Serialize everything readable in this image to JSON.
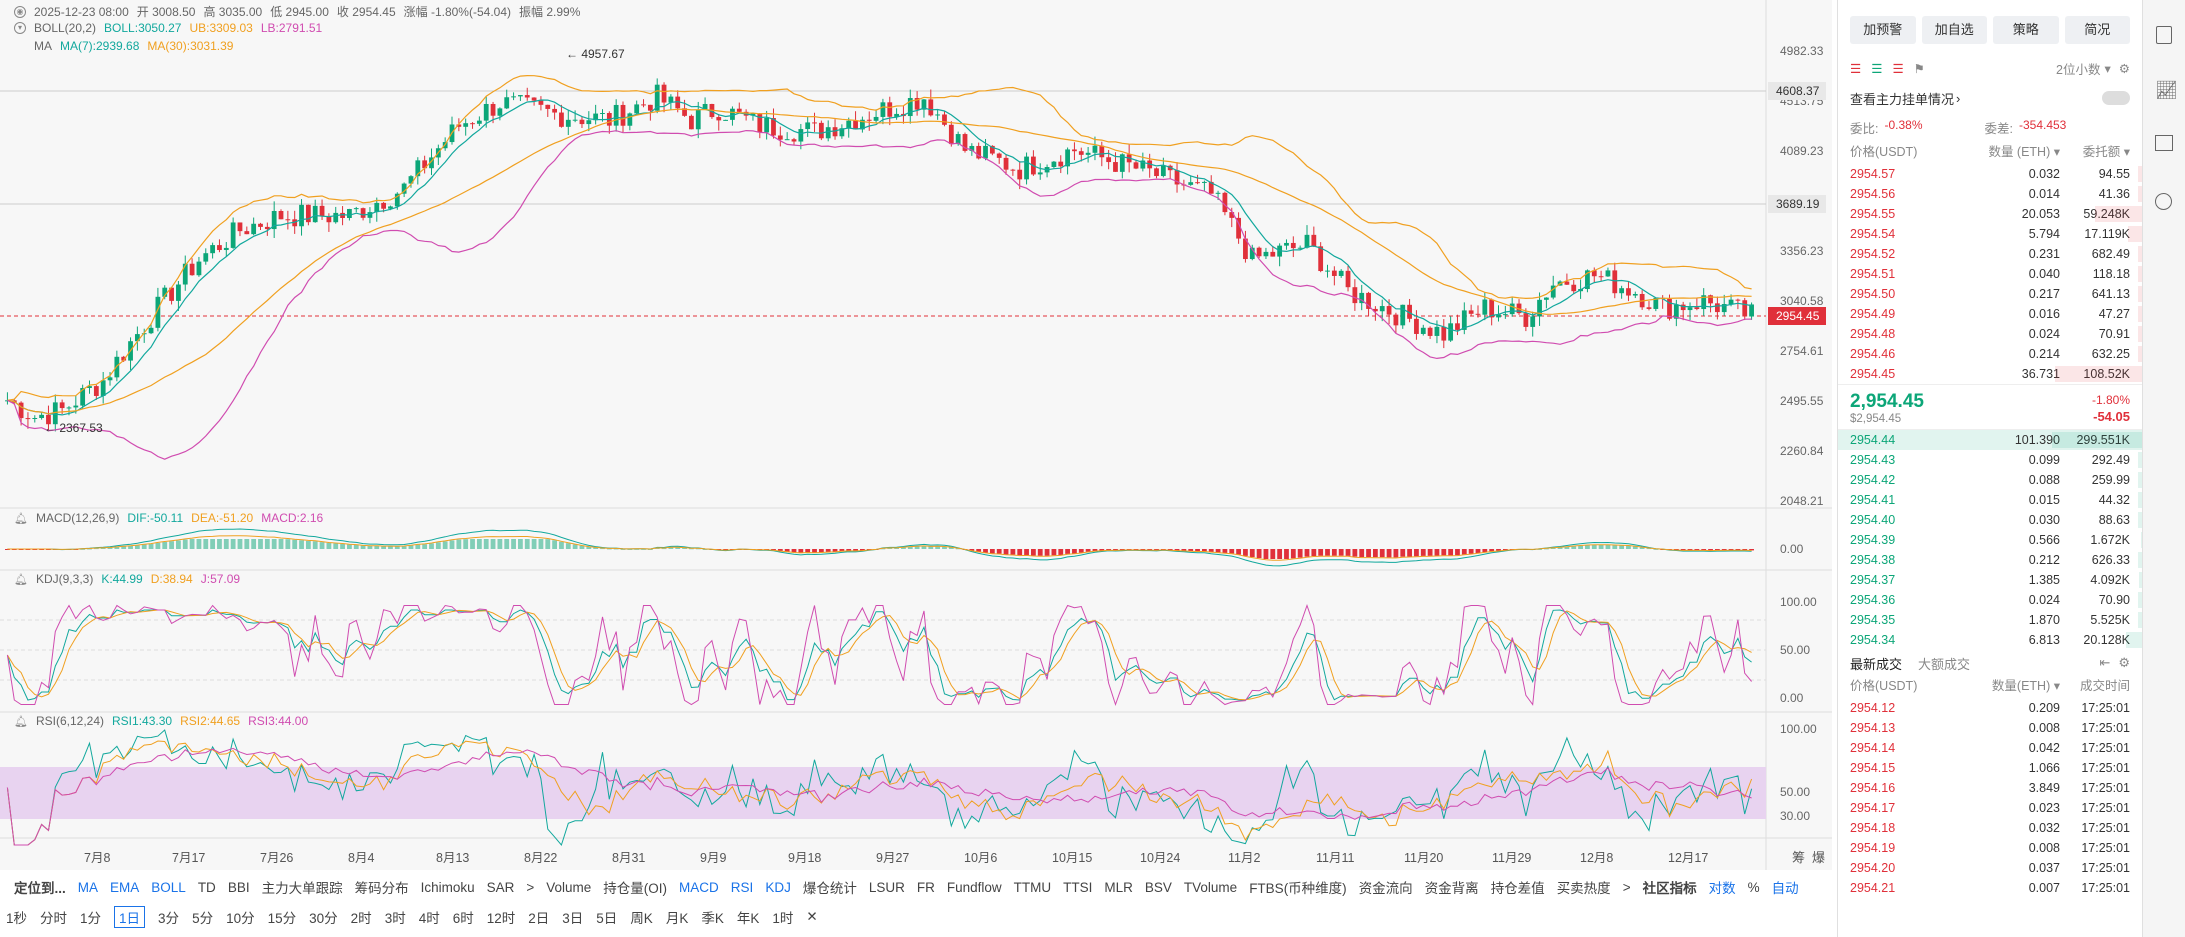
{
  "header": {
    "line1": [
      {
        "t": "2025-12-23 08:00",
        "c": "#666"
      },
      {
        "t": "开 3008.50",
        "c": "#666"
      },
      {
        "t": "高 3035.00",
        "c": "#666"
      },
      {
        "t": "低 2945.00",
        "c": "#666"
      },
      {
        "t": "收 2954.45",
        "c": "#666"
      },
      {
        "t": "涨幅 -1.80%(-54.04)",
        "c": "#666"
      },
      {
        "t": "振幅 2.99%",
        "c": "#666"
      }
    ],
    "boll": [
      {
        "t": "BOLL(20,2)",
        "c": "#666"
      },
      {
        "t": "BOLL:3050.27",
        "c": "#12a89d"
      },
      {
        "t": "UB:3309.03",
        "c": "#f0a020"
      },
      {
        "t": "LB:2791.51",
        "c": "#d04cb0"
      }
    ],
    "ma": [
      {
        "t": "MA",
        "c": "#666"
      },
      {
        "t": "MA(7):2939.68",
        "c": "#12a89d"
      },
      {
        "t": "MA(30):3031.39",
        "c": "#f0a020"
      }
    ]
  },
  "price_axis": [
    "4982.33",
    "4513.75",
    "4089.23",
    "3356.23",
    "3040.58",
    "2754.61",
    "2495.55",
    "2260.84",
    "2048.21"
  ],
  "price_tags": [
    {
      "t": "4608.37",
      "bg": "#e8e8e8",
      "fg": "#333",
      "y": 91
    },
    {
      "t": "3689.19",
      "bg": "#e8e8e8",
      "fg": "#333",
      "y": 204
    },
    {
      "t": "2954.45",
      "bg": "#e0303a",
      "fg": "#fff",
      "y": 316
    }
  ],
  "annotations": {
    "high": "4957.67",
    "low": "2367.53"
  },
  "macd": {
    "title": "MACD(12,26,9)",
    "dif": "DIF:-50.11",
    "dea": "DEA:-51.20",
    "macd": "MACD:2.16",
    "axis": [
      "0.00"
    ]
  },
  "kdj": {
    "title": "KDJ(9,3,3)",
    "k": "K:44.99",
    "d": "D:38.94",
    "j": "J:57.09",
    "axis": [
      "100.00",
      "50.00",
      "0.00"
    ]
  },
  "rsi": {
    "title": "RSI(6,12,24)",
    "r1": "RSI1:43.30",
    "r2": "RSI2:44.65",
    "r3": "RSI3:44.00",
    "axis": [
      "100.00",
      "50.00",
      "30.00"
    ]
  },
  "date_axis": [
    "7月8",
    "7月17",
    "7月26",
    "8月4",
    "8月13",
    "8月22",
    "8月31",
    "9月9",
    "9月18",
    "9月27",
    "10月6",
    "10月15",
    "10月24",
    "11月2",
    "11月11",
    "11月20",
    "11月29",
    "12月8",
    "12月17"
  ],
  "corner": [
    "筹",
    "爆"
  ],
  "bottom_indicators": [
    "定位到...",
    "MA",
    "EMA",
    "BOLL",
    "TD",
    "BBI",
    "主力大单跟踪",
    "筹码分布",
    "Ichimoku",
    "SAR",
    ">",
    "Volume",
    "持仓量(OI)",
    "MACD",
    "RSI",
    "KDJ",
    "爆仓统计",
    "LSUR",
    "FR",
    "Fundflow",
    "TTMU",
    "TTSI",
    "MLR",
    "BSV",
    "TVolume",
    "FTBS(币种维度)",
    "资金流向",
    "资金背离",
    "持仓差值",
    "买卖热度",
    ">",
    "社区指标",
    "对数",
    "%",
    "自动"
  ],
  "timeframes": [
    "1秒",
    "分时",
    "1分",
    "1日",
    "3分",
    "5分",
    "10分",
    "15分",
    "30分",
    "2时",
    "3时",
    "4时",
    "6时",
    "12时",
    "2日",
    "3日",
    "5日",
    "周K",
    "月K",
    "季K",
    "年K",
    "1时",
    "✕"
  ],
  "active_timeframe": "1日",
  "right_panel": {
    "buttons": [
      "加预警",
      "加自选",
      "策略",
      "简况"
    ],
    "precision": "2位小数",
    "orderbook_title": "查看主力挂单情况",
    "ratio_label": "委比:",
    "ratio": "-0.38%",
    "diff_label": "委差:",
    "diff": "-354.453",
    "cols": [
      "价格(USDT)",
      "数量 (ETH)",
      "委托额"
    ],
    "asks": [
      [
        "2954.57",
        "0.032",
        "94.55"
      ],
      [
        "2954.56",
        "0.014",
        "41.36"
      ],
      [
        "2954.55",
        "20.053",
        "59.248K"
      ],
      [
        "2954.54",
        "5.794",
        "17.119K"
      ],
      [
        "2954.52",
        "0.231",
        "682.49"
      ],
      [
        "2954.51",
        "0.040",
        "118.18"
      ],
      [
        "2954.50",
        "0.217",
        "641.13"
      ],
      [
        "2954.49",
        "0.016",
        "47.27"
      ],
      [
        "2954.48",
        "0.024",
        "70.91"
      ],
      [
        "2954.46",
        "0.214",
        "632.25"
      ],
      [
        "2954.45",
        "36.731",
        "108.52K"
      ]
    ],
    "last_price": "2,954.45",
    "last_usd": "$2,954.45",
    "change_pct": "-1.80%",
    "change": "-54.05",
    "bids": [
      [
        "2954.44",
        "101.390",
        "299.551K"
      ],
      [
        "2954.43",
        "0.099",
        "292.49"
      ],
      [
        "2954.42",
        "0.088",
        "259.99"
      ],
      [
        "2954.41",
        "0.015",
        "44.32"
      ],
      [
        "2954.40",
        "0.030",
        "88.63"
      ],
      [
        "2954.39",
        "0.566",
        "1.672K"
      ],
      [
        "2954.38",
        "0.212",
        "626.33"
      ],
      [
        "2954.37",
        "1.385",
        "4.092K"
      ],
      [
        "2954.36",
        "0.024",
        "70.90"
      ],
      [
        "2954.35",
        "1.870",
        "5.525K"
      ],
      [
        "2954.34",
        "6.813",
        "20.128K"
      ]
    ],
    "trade_tabs": [
      "最新成交",
      "大额成交"
    ],
    "trade_cols": [
      "价格(USDT)",
      "数量(ETH)",
      "成交时间"
    ],
    "trades": [
      [
        "2954.12",
        "0.209",
        "17:25:01"
      ],
      [
        "2954.13",
        "0.008",
        "17:25:01"
      ],
      [
        "2954.14",
        "0.042",
        "17:25:01"
      ],
      [
        "2954.15",
        "1.066",
        "17:25:01"
      ],
      [
        "2954.16",
        "3.849",
        "17:25:01"
      ],
      [
        "2954.17",
        "0.023",
        "17:25:01"
      ],
      [
        "2954.18",
        "0.032",
        "17:25:01"
      ],
      [
        "2954.19",
        "0.008",
        "17:25:01"
      ],
      [
        "2954.20",
        "0.037",
        "17:25:01"
      ],
      [
        "2954.21",
        "0.007",
        "17:25:01"
      ]
    ]
  },
  "colors": {
    "up": "#0ca678",
    "down": "#e0303a",
    "ma7": "#12a89d",
    "ma30": "#f0a020",
    "boll_ub": "#f0a020",
    "boll_lb": "#d04cb0",
    "boll_mid": "#12a89d",
    "rsi_band": "#e8d3f0"
  },
  "sidebar_icons": [
    "calculator-icon",
    "chart-icon",
    "bar-chart-icon",
    "settings-icon"
  ]
}
